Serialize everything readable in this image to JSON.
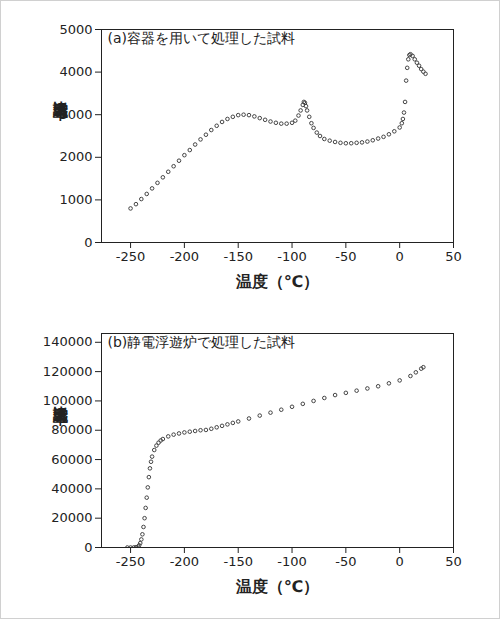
{
  "chart_data": [
    {
      "type": "scatter",
      "title": "(a)容器を用いて処理した試料",
      "xlabel": "温度（℃）",
      "ylabel": "比誘電率",
      "color": "#444444",
      "marker": "circle",
      "x": [
        -250,
        -245,
        -240,
        -235,
        -230,
        -225,
        -220,
        -215,
        -210,
        -205,
        -200,
        -195,
        -190,
        -185,
        -180,
        -175,
        -170,
        -165,
        -160,
        -155,
        -150,
        -145,
        -140,
        -135,
        -130,
        -125,
        -120,
        -115,
        -110,
        -105,
        -100,
        -97,
        -94,
        -92,
        -90,
        -89,
        -88,
        -87,
        -86,
        -84,
        -82,
        -80,
        -77,
        -74,
        -70,
        -65,
        -60,
        -55,
        -50,
        -45,
        -40,
        -35,
        -30,
        -25,
        -20,
        -15,
        -10,
        -5,
        0,
        2,
        3,
        4,
        5,
        6,
        7,
        8,
        9,
        10,
        12,
        14,
        16,
        18,
        20,
        22,
        24
      ],
      "values": [
        800,
        900,
        1020,
        1140,
        1270,
        1400,
        1530,
        1660,
        1790,
        1920,
        2050,
        2170,
        2300,
        2420,
        2530,
        2640,
        2740,
        2830,
        2900,
        2950,
        2990,
        3000,
        2990,
        2960,
        2920,
        2880,
        2840,
        2810,
        2790,
        2790,
        2810,
        2860,
        2980,
        3100,
        3230,
        3300,
        3280,
        3200,
        3100,
        2950,
        2800,
        2690,
        2580,
        2500,
        2430,
        2390,
        2360,
        2340,
        2330,
        2330,
        2340,
        2350,
        2370,
        2400,
        2440,
        2480,
        2540,
        2610,
        2700,
        2800,
        2900,
        3050,
        3300,
        3800,
        4100,
        4300,
        4400,
        4420,
        4380,
        4300,
        4220,
        4150,
        4070,
        4010,
        3960
      ],
      "xlim": [
        -277,
        50
      ],
      "xticks": [
        -250,
        -200,
        -150,
        -100,
        -50,
        0,
        50
      ],
      "ylim": [
        0,
        5000
      ],
      "yticks": [
        0,
        1000,
        2000,
        3000,
        4000,
        5000
      ]
    },
    {
      "type": "scatter",
      "title": "(b)静電浮遊炉で処理した試料",
      "xlabel": "温度（℃）",
      "ylabel": "比誘電率",
      "color": "#444444",
      "marker": "circle",
      "x": [
        -253,
        -250,
        -247,
        -245,
        -243,
        -242,
        -241,
        -240,
        -239,
        -238,
        -237,
        -236,
        -235,
        -234,
        -233,
        -232,
        -231,
        -230,
        -228,
        -226,
        -224,
        -222,
        -220,
        -215,
        -210,
        -205,
        -200,
        -195,
        -190,
        -185,
        -180,
        -175,
        -170,
        -165,
        -160,
        -155,
        -150,
        -140,
        -130,
        -120,
        -110,
        -100,
        -90,
        -80,
        -70,
        -60,
        -50,
        -40,
        -30,
        -20,
        -10,
        0,
        10,
        15,
        20,
        22
      ],
      "values": [
        0,
        0,
        50,
        200,
        600,
        1500,
        3000,
        5500,
        9000,
        14000,
        20000,
        27000,
        34000,
        41000,
        48000,
        54000,
        58500,
        62000,
        66500,
        69500,
        71500,
        73000,
        74000,
        75800,
        77000,
        77800,
        78500,
        79000,
        79500,
        80000,
        80200,
        81000,
        82000,
        83000,
        84000,
        85000,
        86000,
        88000,
        90000,
        92000,
        94000,
        96000,
        98000,
        100000,
        102000,
        104000,
        105500,
        107000,
        108500,
        110000,
        112000,
        114000,
        117000,
        119500,
        122000,
        123000
      ],
      "xlim": [
        -277,
        50
      ],
      "xticks": [
        -250,
        -200,
        -150,
        -100,
        -50,
        0,
        50
      ],
      "ylim": [
        0,
        146000
      ],
      "yticks": [
        0,
        20000,
        40000,
        60000,
        80000,
        100000,
        120000,
        140000
      ]
    }
  ]
}
